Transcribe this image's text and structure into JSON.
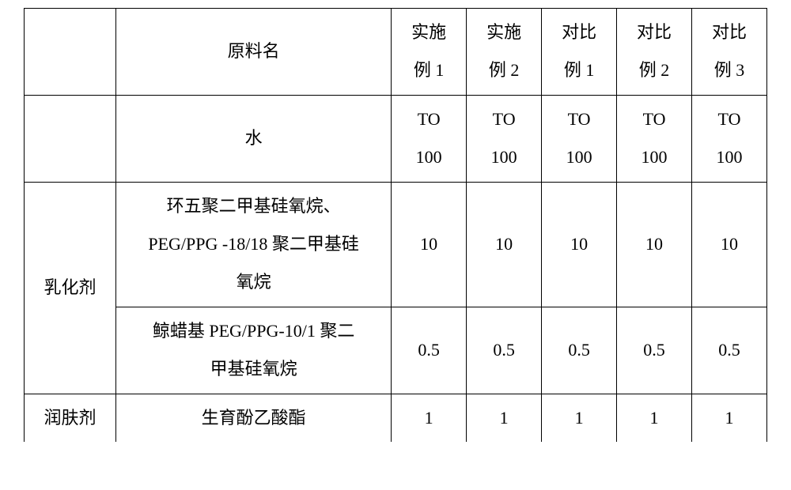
{
  "table": {
    "columns": {
      "category_header": "",
      "name_header": "原料名",
      "col1": {
        "line1": "实施",
        "line2": "例 1"
      },
      "col2": {
        "line1": "实施",
        "line2": "例 2"
      },
      "col3": {
        "line1": "对比",
        "line2": "例 1"
      },
      "col4": {
        "line1": "对比",
        "line2": "例 2"
      },
      "col5": {
        "line1": "对比",
        "line2": "例 3"
      }
    },
    "rows": [
      {
        "category": "",
        "name": "水",
        "values": {
          "c1l1": "TO",
          "c1l2": "100",
          "c2l1": "TO",
          "c2l2": "100",
          "c3l1": "TO",
          "c3l2": "100",
          "c4l1": "TO",
          "c4l2": "100",
          "c5l1": "TO",
          "c5l2": "100"
        }
      },
      {
        "category": "乳化剂",
        "name_lines": {
          "l1": "环五聚二甲基硅氧烷、",
          "l2": "PEG/PPG -18/18 聚二甲基硅",
          "l3": "氧烷"
        },
        "values": {
          "c1": "10",
          "c2": "10",
          "c3": "10",
          "c4": "10",
          "c5": "10"
        }
      },
      {
        "name_lines": {
          "l1": "鲸蜡基 PEG/PPG-10/1 聚二",
          "l2": "甲基硅氧烷"
        },
        "values": {
          "c1": "0.5",
          "c2": "0.5",
          "c3": "0.5",
          "c4": "0.5",
          "c5": "0.5"
        }
      },
      {
        "category": "润肤剂",
        "name": "生育酚乙酸酯",
        "values": {
          "c1": "1",
          "c2": "1",
          "c3": "1",
          "c4": "1",
          "c5": "1"
        }
      }
    ],
    "style": {
      "border_color": "#000000",
      "background_color": "#ffffff",
      "font_size": 22,
      "line_height": 2.2
    }
  }
}
